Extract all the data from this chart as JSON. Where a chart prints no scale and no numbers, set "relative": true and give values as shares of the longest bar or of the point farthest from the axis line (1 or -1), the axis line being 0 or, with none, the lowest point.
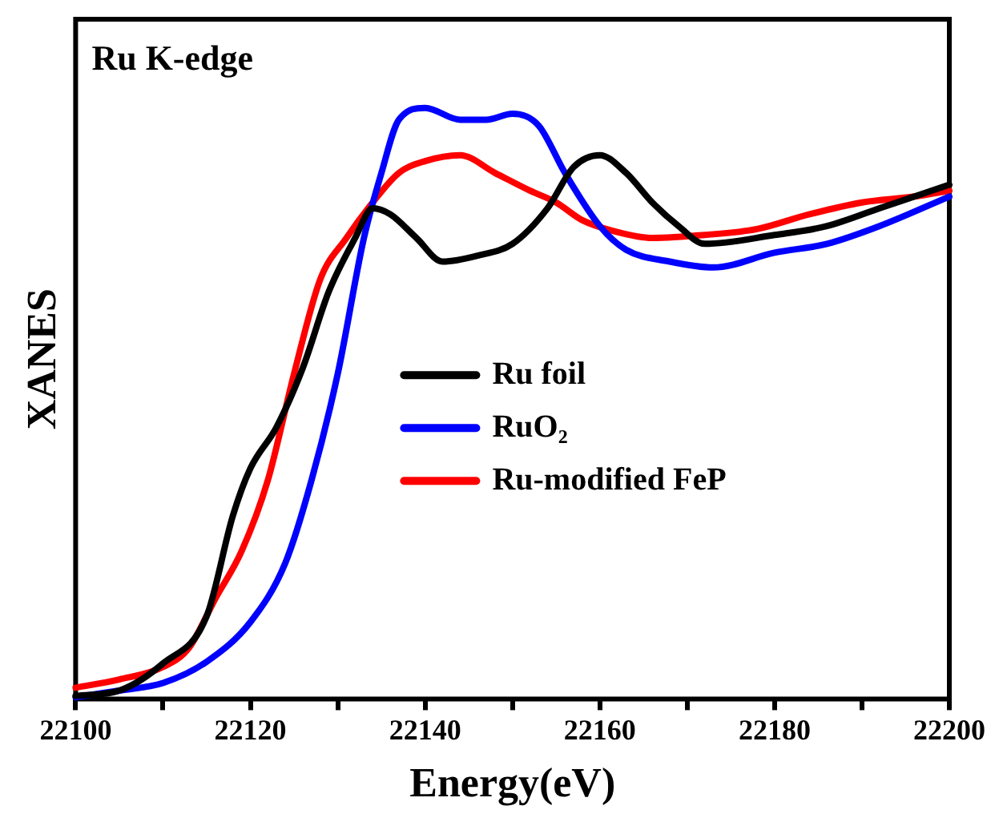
{
  "chart_data": {
    "type": "line",
    "title": "Ru K-edge",
    "xlabel": "Energy(eV)",
    "ylabel": "XANES",
    "relative": true,
    "legend": "right",
    "grid": false,
    "marker": "none",
    "line_style": "solid",
    "xlim": [
      22100,
      22200
    ],
    "xticks": [
      22100,
      {
        "value": 22110,
        "label": null
      },
      22120,
      {
        "value": 22130,
        "label": null
      },
      22140,
      {
        "value": 22150,
        "label": null
      },
      22160,
      {
        "value": 22170,
        "label": null
      },
      22180,
      {
        "value": 22190,
        "label": null
      },
      22200
    ],
    "series": [
      {
        "name": "Ru foil",
        "color": "#000000",
        "x": [
          22100,
          22105,
          22110,
          22115,
          22118,
          22120,
          22123,
          22126,
          22129,
          22132,
          22134,
          22136,
          22139,
          22142,
          22146,
          22150,
          22154,
          22157,
          22160,
          22163,
          22166,
          22169,
          22172,
          22180,
          22186,
          22192,
          22200
        ],
        "values": [
          0.005,
          0.014,
          0.06,
          0.14,
          0.31,
          0.39,
          0.46,
          0.56,
          0.69,
          0.78,
          0.83,
          0.82,
          0.78,
          0.74,
          0.75,
          0.77,
          0.83,
          0.9,
          0.92,
          0.89,
          0.84,
          0.8,
          0.77,
          0.785,
          0.8,
          0.83,
          0.87
        ]
      },
      {
        "name": "RuO₂",
        "color": "#0000ff",
        "x": [
          22100,
          22105,
          22110,
          22115,
          22120,
          22124,
          22127,
          22130,
          22133,
          22135,
          22137,
          22140,
          22144,
          22147,
          22150,
          22153,
          22156,
          22160,
          22163,
          22168,
          22173,
          22180,
          22186,
          22192,
          22200
        ],
        "values": [
          0.003,
          0.014,
          0.027,
          0.063,
          0.13,
          0.23,
          0.37,
          0.55,
          0.78,
          0.89,
          0.98,
          1,
          0.98,
          0.98,
          0.99,
          0.97,
          0.89,
          0.8,
          0.76,
          0.74,
          0.73,
          0.755,
          0.77,
          0.8,
          0.85
        ]
      },
      {
        "name": "Ru-modified FeP",
        "color": "#ff0000",
        "x": [
          22100,
          22105,
          22110,
          22113,
          22116,
          22119,
          22122,
          22125,
          22128,
          22131,
          22134,
          22137,
          22140,
          22144,
          22148,
          22152,
          22155,
          22158,
          22162,
          22166,
          22172,
          22178,
          22184,
          22190,
          22196,
          22200
        ],
        "values": [
          0.019,
          0.033,
          0.054,
          0.087,
          0.17,
          0.25,
          0.37,
          0.55,
          0.71,
          0.78,
          0.84,
          0.89,
          0.91,
          0.92,
          0.89,
          0.86,
          0.84,
          0.81,
          0.79,
          0.78,
          0.785,
          0.795,
          0.82,
          0.84,
          0.85,
          0.86
        ]
      }
    ]
  }
}
